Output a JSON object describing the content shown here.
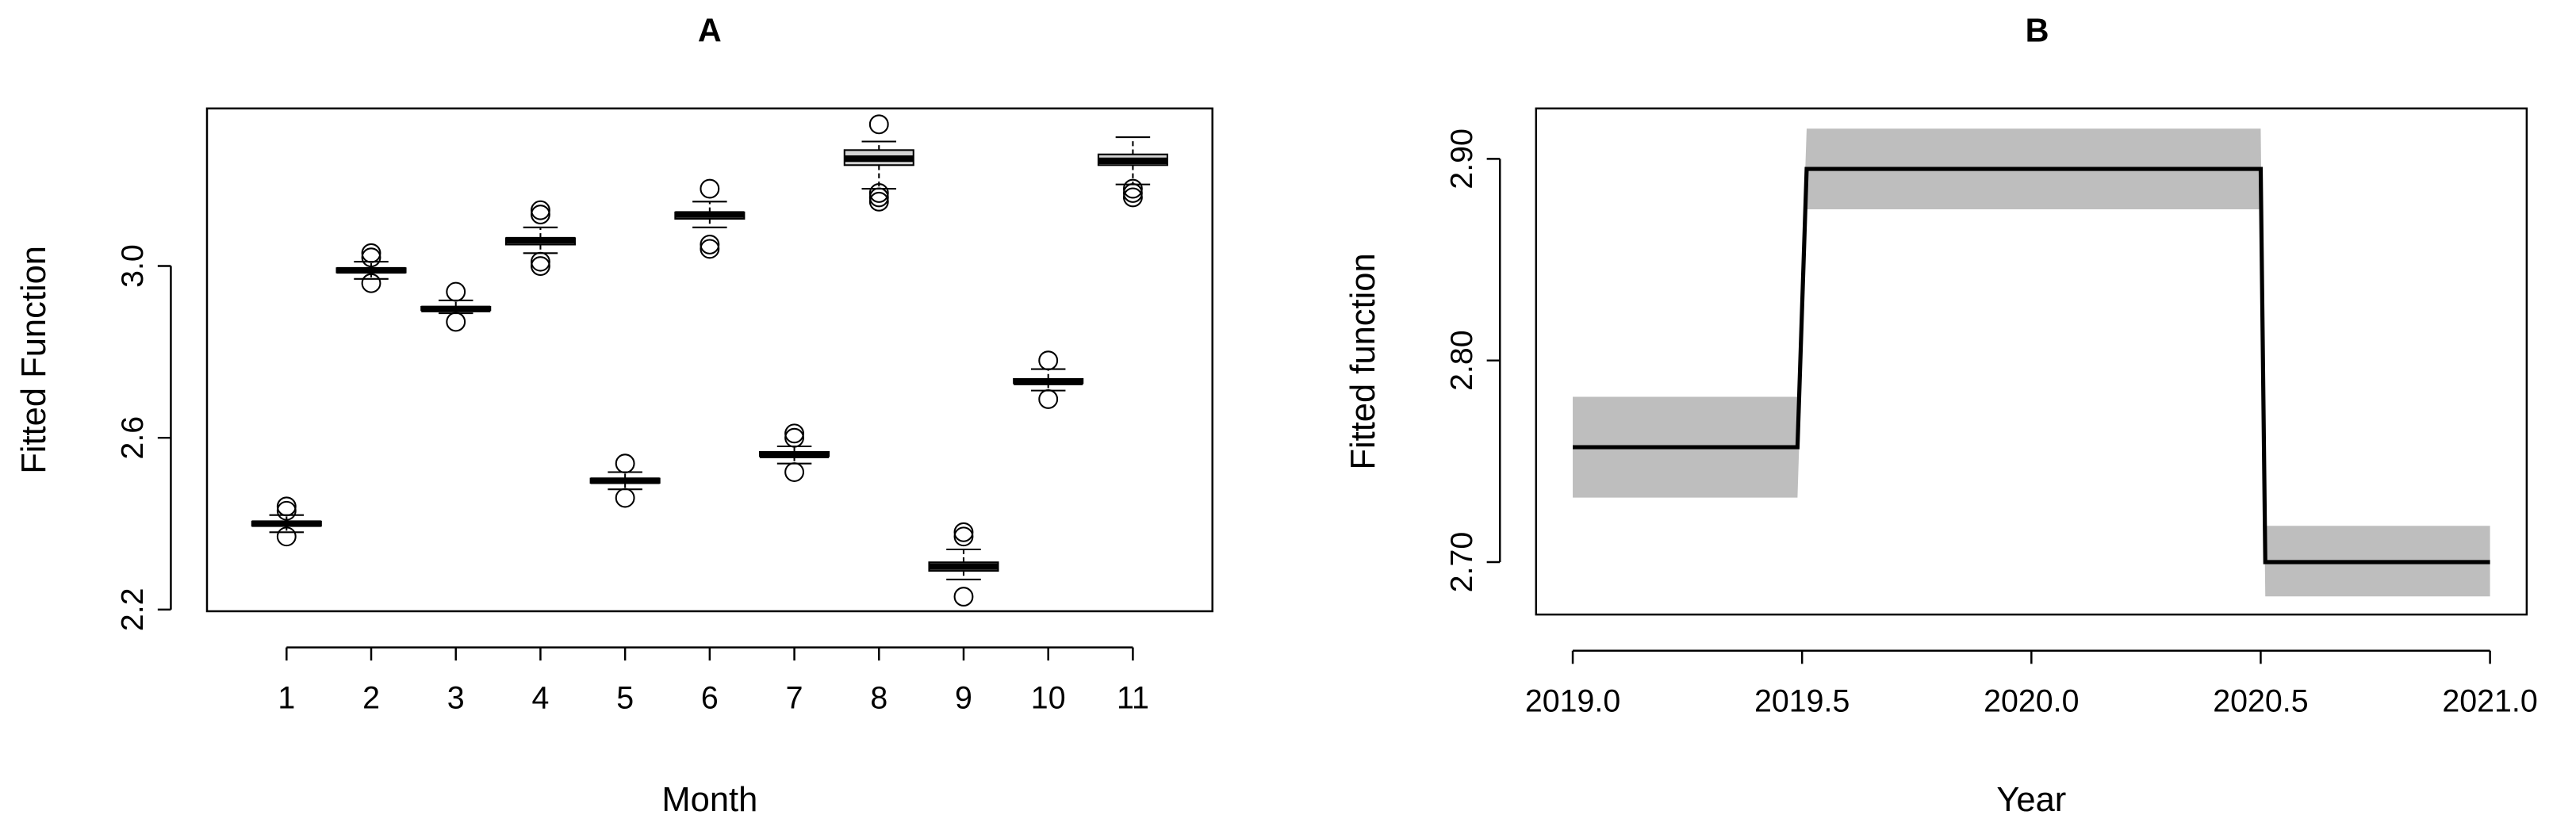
{
  "chart_data": [
    {
      "type": "box",
      "title": "A",
      "x_label": "Month",
      "y_label": "Fitted Function",
      "categories": [
        "1",
        "2",
        "3",
        "4",
        "5",
        "6",
        "7",
        "8",
        "9",
        "10",
        "11"
      ],
      "ylim": [
        2.196,
        3.367
      ],
      "yticks": [
        2.2,
        2.6,
        {
          "value": 3,
          "label": "3.0"
        }
      ],
      "boxes": [
        {
          "low": 2.38,
          "q1": 2.395,
          "median": 2.4,
          "q3": 2.405,
          "high": 2.42,
          "outliers": [
            2.44,
            2.43,
            2.37
          ]
        },
        {
          "low": 2.97,
          "q1": 2.985,
          "median": 2.99,
          "q3": 2.995,
          "high": 3.01,
          "outliers": [
            3.03,
            3.02,
            2.96
          ]
        },
        {
          "low": 2.89,
          "q1": 2.897,
          "median": 2.9,
          "q3": 2.905,
          "high": 2.92,
          "outliers": [
            2.94,
            2.87
          ]
        },
        {
          "low": 3.03,
          "q1": 3.05,
          "median": 3.06,
          "q3": 3.065,
          "high": 3.09,
          "outliers": [
            3.13,
            3.12,
            3.01,
            3.0
          ]
        },
        {
          "low": 2.48,
          "q1": 2.495,
          "median": 2.5,
          "q3": 2.505,
          "high": 2.52,
          "outliers": [
            2.54,
            2.46
          ]
        },
        {
          "low": 3.09,
          "q1": 3.11,
          "median": 3.12,
          "q3": 3.125,
          "high": 3.15,
          "outliers": [
            3.18,
            3.05,
            3.04
          ]
        },
        {
          "low": 2.54,
          "q1": 2.557,
          "median": 2.56,
          "q3": 2.567,
          "high": 2.58,
          "outliers": [
            2.61,
            2.6,
            2.52
          ]
        },
        {
          "low": 3.18,
          "q1": 3.235,
          "median": 3.25,
          "q3": 3.27,
          "high": 3.29,
          "outliers": [
            3.33,
            3.17,
            3.16,
            3.15
          ]
        },
        {
          "low": 2.27,
          "q1": 2.29,
          "median": 2.3,
          "q3": 2.31,
          "high": 2.34,
          "outliers": [
            2.38,
            2.37,
            2.23
          ]
        },
        {
          "low": 2.71,
          "q1": 2.727,
          "median": 2.73,
          "q3": 2.737,
          "high": 2.76,
          "outliers": [
            2.78,
            2.69
          ]
        },
        {
          "low": 3.19,
          "q1": 3.235,
          "median": 3.245,
          "q3": 3.26,
          "high": 3.3,
          "outliers": [
            3.18,
            3.17,
            3.16
          ]
        }
      ]
    },
    {
      "type": "line",
      "title": "B",
      "x_label": "Year",
      "y_label": "Fitted function",
      "xlim": [
        2018.92,
        2021.08
      ],
      "ylim": [
        2.674,
        2.925
      ],
      "xticks": [
        {
          "value": 2019,
          "label": "2019.0"
        },
        2019.5,
        {
          "value": 2020,
          "label": "2020.0"
        },
        2020.5,
        {
          "value": 2021,
          "label": "2021.0"
        }
      ],
      "yticks": [
        {
          "value": 2.7,
          "label": "2.70"
        },
        {
          "value": 2.8,
          "label": "2.80"
        },
        {
          "value": 2.9,
          "label": "2.90"
        }
      ],
      "x": [
        2019,
        2019.49,
        2019.51,
        2020.5,
        2020.51,
        2021
      ],
      "values": [
        2.757,
        2.757,
        2.895,
        2.895,
        2.7,
        2.7
      ],
      "upper": [
        2.782,
        2.782,
        2.915,
        2.915,
        2.718,
        2.718
      ],
      "lower": [
        2.732,
        2.732,
        2.875,
        2.875,
        2.683,
        2.683
      ],
      "color": "#000000",
      "band_color": "#bebebe"
    }
  ]
}
